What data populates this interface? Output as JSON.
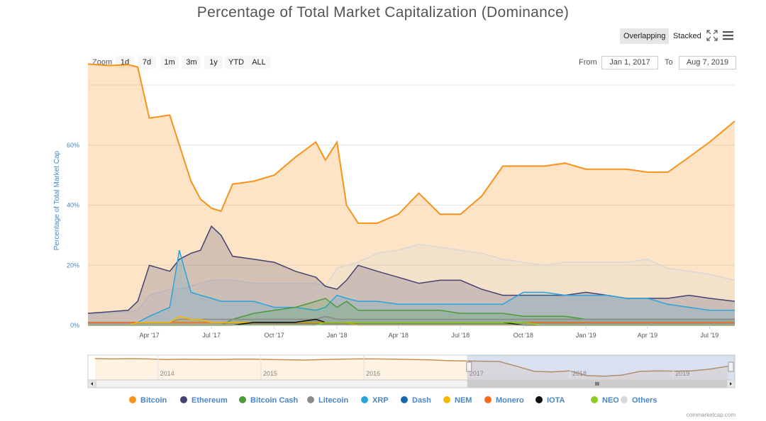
{
  "title": "Percentage of Total Market Capitalization (Dominance)",
  "view_buttons": {
    "overlapping": "Overlapping",
    "stacked": "Stacked"
  },
  "icons": {
    "fullscreen": "fullscreen-icon",
    "menu": "hamburger-menu-icon"
  },
  "zoom": {
    "label": "Zoom",
    "buttons": [
      "1d",
      "7d",
      "1m",
      "3m",
      "1y",
      "YTD",
      "ALL"
    ]
  },
  "range": {
    "from_label": "From",
    "from_value": "Jan 1, 2017",
    "to_label": "To",
    "to_value": "Aug 7, 2019"
  },
  "credits": "coinmarketcap.com",
  "colors": {
    "Bitcoin": "#f7931a",
    "Ethereum": "#434371",
    "Bitcoin Cash": "#4c9a3a",
    "Litecoin": "#8a8a8a",
    "XRP": "#2aa4dc",
    "Dash": "#1866b0",
    "NEM": "#f5b800",
    "Monero": "#f26c1c",
    "IOTA": "#111111",
    "NEO": "#8ccc1e",
    "Others": "#d8d8d8"
  },
  "chart_data": {
    "type": "area",
    "title": "Percentage of Total Market Capitalization (Dominance)",
    "ylabel": "Percentage of Total Market Cap",
    "xlabel": "",
    "x_range": [
      "2017-01-01",
      "2019-08-07"
    ],
    "ylim": [
      0,
      80
    ],
    "y_ticks": [
      "0%",
      "20%",
      "40%",
      "60%"
    ],
    "x_ticks": [
      "Apr '17",
      "Jul '17",
      "Oct '17",
      "Jan '18",
      "Apr '18",
      "Jul '18",
      "Oct '18",
      "Jan '19",
      "Apr '19",
      "Jul '19"
    ],
    "grid": true,
    "legend_position": "bottom",
    "x": [
      "2017-01-01",
      "2017-02-01",
      "2017-03-01",
      "2017-03-15",
      "2017-04-01",
      "2017-05-01",
      "2017-05-15",
      "2017-06-01",
      "2017-06-15",
      "2017-07-01",
      "2017-07-15",
      "2017-08-01",
      "2017-09-01",
      "2017-10-01",
      "2017-11-01",
      "2017-12-01",
      "2017-12-15",
      "2018-01-01",
      "2018-01-15",
      "2018-02-01",
      "2018-03-01",
      "2018-04-01",
      "2018-05-01",
      "2018-06-01",
      "2018-07-01",
      "2018-08-01",
      "2018-09-01",
      "2018-10-01",
      "2018-11-01",
      "2018-12-01",
      "2019-01-01",
      "2019-02-01",
      "2019-03-01",
      "2019-04-01",
      "2019-05-01",
      "2019-06-01",
      "2019-07-01",
      "2019-08-07"
    ],
    "series": [
      {
        "name": "Bitcoin",
        "values": [
          87,
          86.5,
          86.8,
          86,
          69,
          70,
          60,
          48,
          42,
          39,
          38,
          47,
          48,
          50,
          56,
          61,
          55,
          61,
          40,
          34,
          34,
          37,
          44,
          37,
          37,
          43,
          53,
          53,
          53,
          54,
          52,
          52,
          52,
          51,
          51,
          56,
          61,
          68
        ]
      },
      {
        "name": "Ethereum",
        "values": [
          4,
          4.5,
          5,
          8,
          20,
          18,
          22,
          24,
          25,
          33,
          30,
          23,
          22,
          21,
          18,
          16,
          13,
          12,
          15,
          20,
          18,
          16,
          14,
          15,
          15,
          12,
          10,
          10,
          10,
          10,
          11,
          10,
          9,
          9,
          9,
          10,
          9,
          8
        ]
      },
      {
        "name": "Bitcoin Cash",
        "values": [
          0,
          0,
          0,
          0,
          0,
          0,
          0,
          0,
          0,
          0,
          0,
          2,
          4,
          5,
          6,
          8,
          9,
          6,
          8,
          5,
          5,
          5,
          5,
          5,
          4,
          4,
          4,
          3,
          3,
          3,
          2,
          2,
          2,
          2,
          2,
          2,
          2,
          2
        ]
      },
      {
        "name": "Litecoin",
        "values": [
          1,
          1,
          1,
          1,
          1,
          1,
          2,
          2,
          2,
          2,
          2,
          2,
          2,
          2,
          2,
          2,
          3,
          2,
          2,
          2,
          2,
          2,
          2,
          2,
          2,
          2,
          2,
          2,
          2,
          2,
          2,
          2,
          2,
          2,
          2,
          2,
          2,
          2
        ]
      },
      {
        "name": "XRP",
        "values": [
          1,
          1,
          1,
          1,
          3,
          6,
          25,
          11,
          10,
          9,
          8,
          8,
          8,
          6,
          6,
          5,
          6,
          10,
          9,
          8,
          8,
          7,
          7,
          7,
          7,
          7,
          7,
          11,
          11,
          10,
          10,
          10,
          9,
          9,
          7,
          6,
          5,
          5
        ]
      },
      {
        "name": "Dash",
        "values": [
          1,
          1,
          1,
          1,
          1,
          1,
          1,
          1,
          1,
          1,
          1,
          1,
          1,
          1,
          1,
          1,
          1,
          1,
          1,
          1,
          1,
          1,
          1,
          1,
          1,
          1,
          1,
          1,
          1,
          1,
          1,
          1,
          1,
          1,
          1,
          1,
          1,
          1
        ]
      },
      {
        "name": "NEM",
        "values": [
          0,
          0,
          0,
          1,
          1,
          1,
          3,
          2,
          2,
          1,
          1,
          1,
          1,
          1,
          1,
          1,
          1,
          1,
          1,
          0,
          0,
          0,
          0,
          0,
          0,
          0,
          0,
          0,
          0,
          0,
          0,
          0,
          0,
          0,
          0,
          0,
          0,
          0
        ]
      },
      {
        "name": "Monero",
        "values": [
          1,
          1,
          1,
          1,
          1,
          1,
          1,
          1,
          1,
          1,
          1,
          1,
          1,
          1,
          1,
          1,
          1,
          1,
          1,
          1,
          1,
          1,
          1,
          1,
          1,
          1,
          1,
          1,
          1,
          1,
          1,
          1,
          1,
          1,
          1,
          1,
          1,
          1
        ]
      },
      {
        "name": "IOTA",
        "values": [
          0,
          0,
          0,
          0,
          0,
          0,
          0,
          0,
          0,
          0,
          0,
          0,
          1,
          1,
          1,
          2,
          1,
          1,
          1,
          1,
          1,
          1,
          1,
          1,
          1,
          1,
          1,
          0,
          0,
          0,
          0,
          0,
          0,
          0,
          0,
          0,
          0,
          0
        ]
      },
      {
        "name": "NEO",
        "values": [
          0,
          0,
          0,
          0,
          0,
          0,
          0,
          0,
          0,
          0,
          0,
          0,
          0,
          0,
          0,
          0,
          1,
          1,
          1,
          1,
          1,
          1,
          1,
          1,
          1,
          1,
          1,
          1,
          0,
          0,
          0,
          0,
          0,
          0,
          0,
          0,
          0,
          0
        ]
      },
      {
        "name": "Others",
        "values": [
          4,
          4,
          4.5,
          5,
          10,
          12,
          12,
          13,
          14,
          15,
          15,
          15,
          14,
          14,
          14,
          14,
          13,
          19,
          20,
          21,
          24,
          25,
          27,
          26,
          25,
          24,
          22,
          21,
          20,
          21,
          21,
          21,
          21,
          22,
          19,
          18,
          17,
          15
        ]
      }
    ],
    "navigator": {
      "x_labels": [
        "2014",
        "2015",
        "2016",
        "2017",
        "2018",
        "2019"
      ],
      "x_range": [
        "2013-04-28",
        "2019-08-07"
      ],
      "selected_range": [
        "2017-01-01",
        "2019-08-07"
      ],
      "btc_values": [
        95,
        94,
        95,
        94,
        92,
        93,
        92,
        92,
        93,
        93,
        92,
        91,
        90,
        92,
        93,
        94,
        94,
        93,
        92,
        91,
        88,
        87,
        86,
        85,
        68,
        50,
        48,
        52,
        35,
        33,
        37,
        50,
        52,
        51,
        52,
        58,
        68
      ]
    }
  }
}
